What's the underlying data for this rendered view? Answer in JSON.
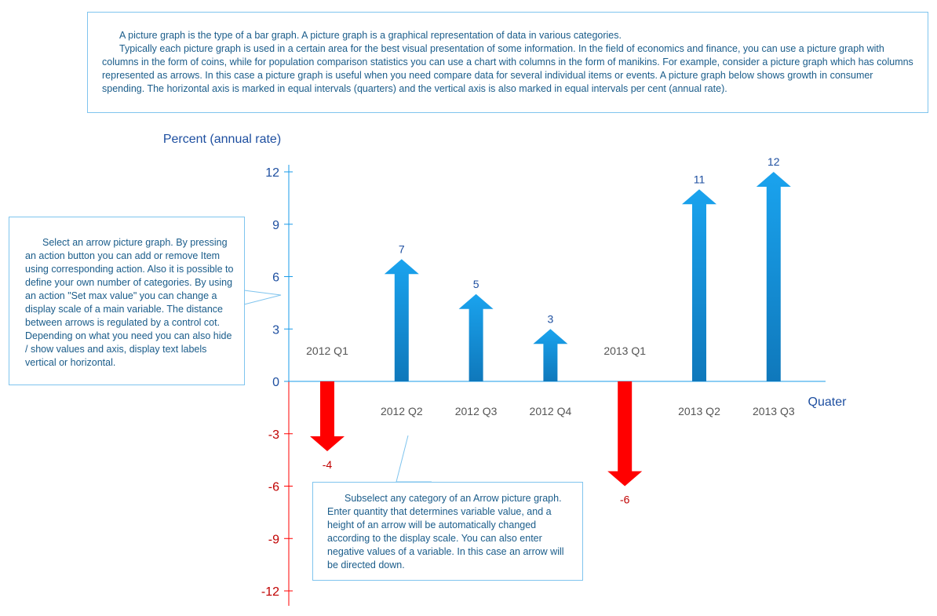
{
  "intro": {
    "p1": "A picture graph is the type of a bar graph. A picture graph is a graphical representation of data in various categories.",
    "p2": "Typically each picture graph is used in a certain area for the best visual presentation of some information. In the field of economics and finance, you can use a picture graph with columns in the form of coins, while for population comparison statistics you can use a chart with columns in the form of manikins. For example, consider a picture graph which has columns represented as arrows. In this case a picture graph is useful when you need compare data for several individual items or events. A picture graph below shows growth in consumer spending. The horizontal axis is marked in equal intervals (quarters) and the vertical axis is also marked in equal intervals per cent (annual rate)."
  },
  "callout_left": "Select an arrow picture graph. By pressing an action button you can add or remove Item using corresponding action. Also it is possible to define your own number of categories. By using an action \"Set max value\" you can change a display scale of a main variable. The distance between arrows is regulated by a control cot. Depending on what you need you can also hide / show values and axis, display text labels vertical or horizontal.",
  "callout_bottom": "Subselect any category of an Arrow picture graph. Enter quantity that determines variable value, and a height of an arrow will be automatically changed according to the display scale. You can also enter negative values of a variable. In this case an arrow will be directed down.",
  "chart_data": {
    "type": "bar",
    "ylabel": "Percent (annual rate)",
    "xlabel": "Quater",
    "ylim": [
      -12,
      12
    ],
    "yticks": [
      12,
      9,
      6,
      3,
      0,
      -3,
      -6,
      -9,
      -12
    ],
    "categories": [
      "2012 Q1",
      "2012 Q2",
      "2012 Q3",
      "2012 Q4",
      "2013 Q1",
      "2013 Q2",
      "2013 Q3"
    ],
    "values": [
      -4,
      7,
      5,
      3,
      -6,
      11,
      12
    ],
    "colors": {
      "positive": "#1a9be8",
      "negative": "#ff0000",
      "axis_pos": "#1a9be8",
      "axis_neg": "#ff0000",
      "tick_pos": "#1e4fa0",
      "tick_neg": "#c00000",
      "cat": "#555555"
    }
  }
}
